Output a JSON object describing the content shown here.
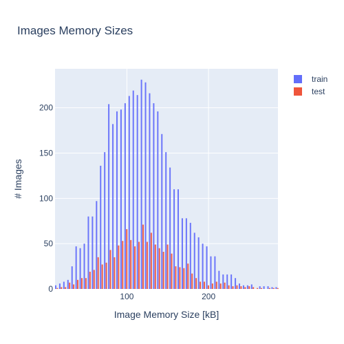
{
  "chart_data": {
    "type": "bar",
    "title": "Images Memory Sizes",
    "xlabel": "Image Memory Size [kB]",
    "ylabel": "# Images",
    "xlim": [
      12,
      285
    ],
    "ylim": [
      0,
      243
    ],
    "x_ticks": [
      100,
      200
    ],
    "y_ticks": [
      0,
      50,
      100,
      150,
      200
    ],
    "grid": true,
    "legend_position": "top-right",
    "x": [
      14,
      19,
      24,
      29,
      34,
      39,
      44,
      49,
      54,
      59,
      64,
      69,
      74,
      79,
      84,
      89,
      94,
      99,
      104,
      109,
      114,
      119,
      124,
      129,
      134,
      139,
      144,
      149,
      154,
      159,
      164,
      169,
      174,
      179,
      184,
      189,
      194,
      199,
      204,
      209,
      214,
      219,
      224,
      229,
      234,
      239,
      244,
      249,
      254,
      259,
      264,
      269,
      274,
      279,
      284
    ],
    "series": [
      {
        "name": "train",
        "color": "#636efa",
        "values": [
          4,
          6,
          8,
          10,
          25,
          47,
          45,
          50,
          80,
          80,
          97,
          136,
          151,
          204,
          182,
          196,
          198,
          205,
          213,
          219,
          214,
          231,
          228,
          216,
          205,
          196,
          171,
          151,
          134,
          110,
          110,
          78,
          78,
          73,
          62,
          57,
          50,
          47,
          36,
          36,
          20,
          16,
          16,
          16,
          12,
          6,
          4,
          4,
          5,
          0,
          3,
          3,
          3,
          2,
          2
        ]
      },
      {
        "name": "test",
        "color": "#ef553b",
        "values": [
          1,
          2,
          2,
          7,
          5,
          10,
          12,
          12,
          19,
          21,
          35,
          27,
          29,
          43,
          35,
          48,
          53,
          66,
          54,
          47,
          52,
          71,
          52,
          62,
          49,
          45,
          41,
          49,
          39,
          25,
          24,
          23,
          28,
          17,
          12,
          8,
          8,
          4,
          6,
          8,
          6,
          7,
          4,
          3,
          4,
          3,
          2,
          3,
          2,
          1,
          1,
          0,
          1,
          1,
          1
        ]
      }
    ]
  }
}
